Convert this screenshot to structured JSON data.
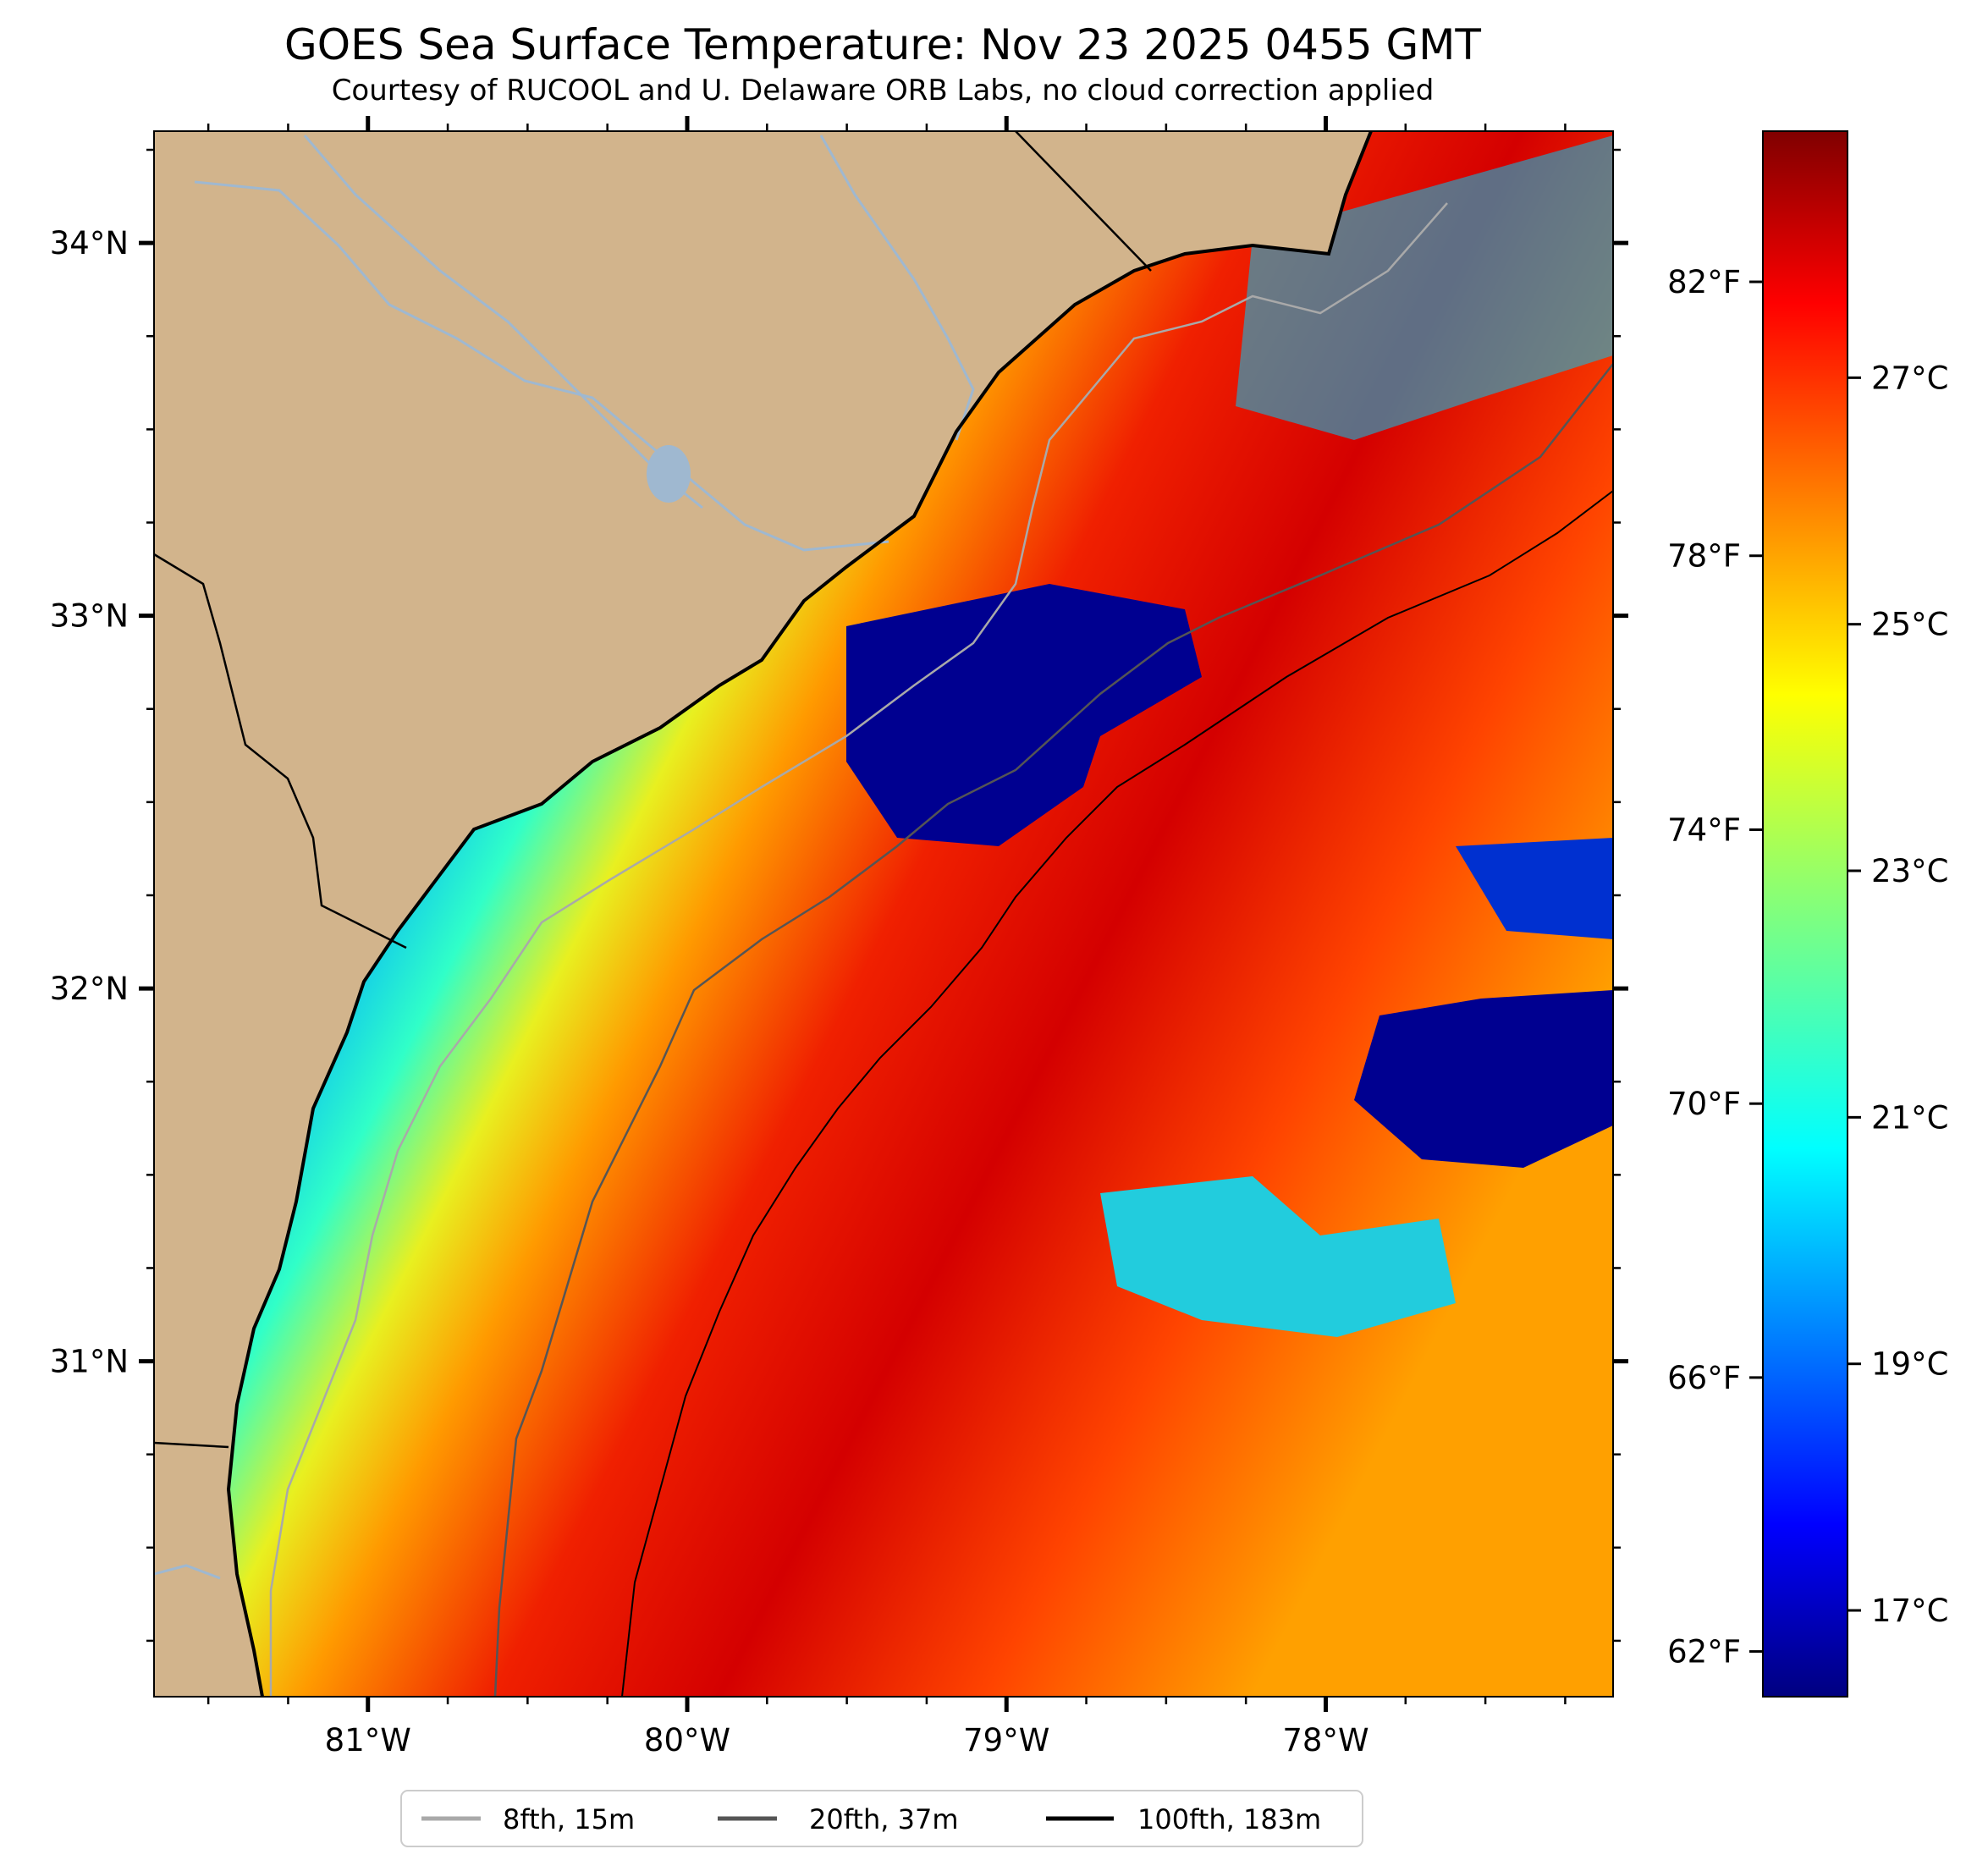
{
  "title": "GOES Sea Surface Temperature: Nov 23 2025 0455 GMT",
  "subtitle": "Courtesy of RUCOOL and U. Delaware ORB Labs, no cloud correction applied",
  "colors": {
    "land": "#d2b48c",
    "river": "#9fb8d0",
    "coast": "#000000",
    "iso_8fth": "#a9a9a9",
    "iso_20fth": "#555555",
    "iso_100fth": "#000000"
  },
  "map": {
    "lon_range": [
      -81.67,
      -77.1
    ],
    "lat_range": [
      30.1,
      34.3
    ],
    "lat_ticks": [
      {
        "value": 34,
        "label": "34°N"
      },
      {
        "value": 33,
        "label": "33°N"
      },
      {
        "value": 32,
        "label": "32°N"
      },
      {
        "value": 31,
        "label": "31°N"
      }
    ],
    "lon_ticks": [
      {
        "value": -81,
        "label": "81°W"
      },
      {
        "value": -80,
        "label": "80°W"
      },
      {
        "value": -79,
        "label": "79°W"
      },
      {
        "value": -78,
        "label": "78°W"
      }
    ]
  },
  "colorbar": {
    "celsius_range": [
      16.3,
      29.0
    ],
    "celsius_ticks": [
      {
        "value": 17,
        "label": "17°C"
      },
      {
        "value": 19,
        "label": "19°C"
      },
      {
        "value": 21,
        "label": "21°C"
      },
      {
        "value": 23,
        "label": "23°C"
      },
      {
        "value": 25,
        "label": "25°C"
      },
      {
        "value": 27,
        "label": "27°C"
      }
    ],
    "fahrenheit_ticks": [
      {
        "value": 62,
        "label": "62°F"
      },
      {
        "value": 66,
        "label": "66°F"
      },
      {
        "value": 70,
        "label": "70°F"
      },
      {
        "value": 74,
        "label": "74°F"
      },
      {
        "value": 78,
        "label": "78°F"
      },
      {
        "value": 82,
        "label": "82°F"
      }
    ]
  },
  "legend": {
    "items": [
      {
        "label": "8fth, 15m",
        "color": "#a9a9a9"
      },
      {
        "label": "20fth, 37m",
        "color": "#555555"
      },
      {
        "label": "100fth, 183m",
        "color": "#000000"
      }
    ]
  }
}
